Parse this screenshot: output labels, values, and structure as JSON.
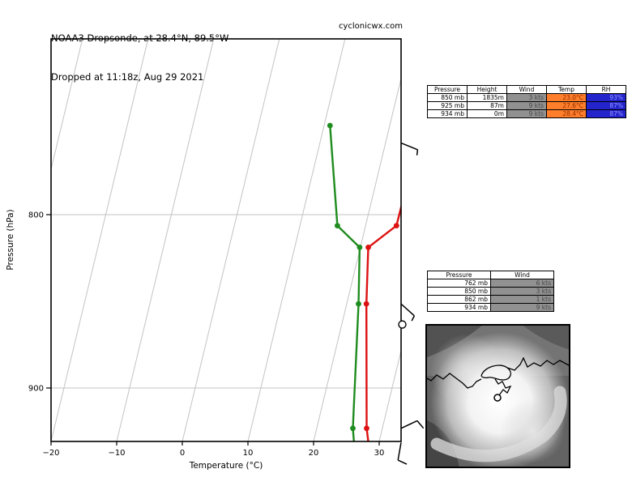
{
  "header": {
    "title_line1": "NOAA3 Dropsonde, at 28.4°N, 89.5°W",
    "title_line2": "Dropped at 11:18z, Aug 29 2021",
    "watermark": "cyclonicwx.com"
  },
  "chart_data": {
    "type": "line",
    "variant": "skew-t log-p sounding",
    "xlabel": "Temperature (°C)",
    "ylabel": "Pressure (hPa)",
    "x_tick_values": [
      -20,
      -10,
      0,
      10,
      20,
      30
    ],
    "x_tick_labels": [
      "−20",
      "−10",
      "0",
      "10",
      "20",
      "30"
    ],
    "y_tick_values": [
      800,
      900
    ],
    "y_tick_labels": [
      "800",
      "900"
    ],
    "pressure_range_hpa": [
      710,
      934
    ],
    "temp_range_c": [
      -20,
      33.3
    ],
    "skew_isotherms_c": [
      -30,
      -20,
      -10,
      0,
      10,
      20,
      30
    ],
    "grid": true,
    "series": [
      {
        "name": "temperature",
        "color": "#dd1111",
        "points": [
          [
            780,
            24.8,
            0
          ],
          [
            806,
            24.7,
            1
          ],
          [
            818,
            21.2,
            1
          ],
          [
            850,
            23.0,
            1
          ],
          [
            925,
            27.6,
            1
          ],
          [
            934,
            28.4,
            0
          ]
        ]
      },
      {
        "name": "dewpoint",
        "color": "#1f8c1f",
        "points": [
          [
            753,
            10.9,
            1
          ],
          [
            806,
            15.7,
            1
          ],
          [
            818,
            19.9,
            1
          ],
          [
            850,
            21.8,
            1
          ],
          [
            925,
            25.5,
            1
          ],
          [
            934,
            26.2,
            0
          ]
        ]
      }
    ],
    "wind_barbs": [
      {
        "p": 762,
        "kts": 6,
        "angle": 22,
        "side": 1
      },
      {
        "p": 850,
        "kts": 3,
        "angle": 42,
        "side": 1
      },
      {
        "p": 862,
        "kts": 1,
        "angle": 0,
        "side": 1
      },
      {
        "p": 925,
        "kts": 9,
        "angle": -25,
        "side": 1
      },
      {
        "p": 934,
        "kts": 9,
        "angle": 100,
        "side": -1
      }
    ]
  },
  "table1": {
    "headers": [
      "Pressure",
      "Height",
      "Wind",
      "Temp",
      "RH"
    ],
    "rows": [
      [
        "850 mb",
        "1835m",
        "3 kts",
        "23.0°C",
        "93%"
      ],
      [
        "925 mb",
        "87m",
        "9 kts",
        "27.6°C",
        "87%"
      ],
      [
        "934 mb",
        "0m",
        "9 kts",
        "28.4°C",
        "87%"
      ]
    ]
  },
  "table2": {
    "headers": [
      "Pressure",
      "Wind"
    ],
    "rows": [
      [
        "762 mb",
        "6 kts"
      ],
      [
        "850 mb",
        "3 kts"
      ],
      [
        "862 mb",
        "1 kts"
      ],
      [
        "934 mb",
        "9 kts"
      ]
    ]
  },
  "colors": {
    "temperature_line": "#dd1111",
    "dewpoint_line": "#1f8c1f",
    "grid": "#c3c3c3",
    "axis": "#000000",
    "wind_cell_bg": "#919191",
    "temp_cell_bg": "#ff7e2b",
    "rh_cell_bg": "#2424cd"
  },
  "satellite": {
    "description": "grayscale hurricane satellite inset with coastline and dropsonde location marker"
  }
}
